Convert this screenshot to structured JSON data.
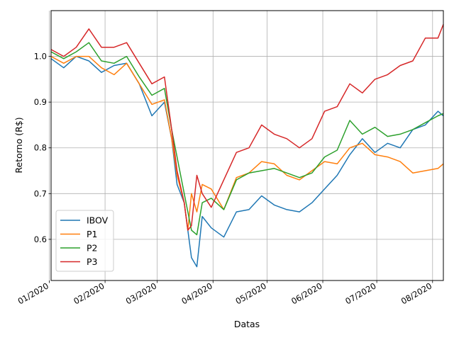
{
  "chart_data": {
    "type": "line",
    "title": "",
    "xlabel": "Datas",
    "ylabel": "Retorno (R$)",
    "x_ticks": [
      "01/2020",
      "02/2020",
      "03/2020",
      "04/2020",
      "05/2020",
      "06/2020",
      "07/2020",
      "08/2020"
    ],
    "x_range": [
      "2020-01-02",
      "2020-08-07"
    ],
    "ylim": [
      0.51,
      1.1
    ],
    "y_ticks": [
      0.6,
      0.7,
      0.8,
      0.9,
      1.0
    ],
    "grid": true,
    "legend_position": "lower-left",
    "x": [
      "2020-01-02",
      "2020-01-09",
      "2020-01-16",
      "2020-01-23",
      "2020-01-30",
      "2020-02-06",
      "2020-02-13",
      "2020-02-20",
      "2020-02-27",
      "2020-03-05",
      "2020-03-09",
      "2020-03-12",
      "2020-03-16",
      "2020-03-18",
      "2020-03-20",
      "2020-03-23",
      "2020-03-26",
      "2020-03-31",
      "2020-04-07",
      "2020-04-14",
      "2020-04-21",
      "2020-04-28",
      "2020-05-05",
      "2020-05-12",
      "2020-05-19",
      "2020-05-26",
      "2020-06-02",
      "2020-06-09",
      "2020-06-16",
      "2020-06-23",
      "2020-06-30",
      "2020-07-07",
      "2020-07-14",
      "2020-07-21",
      "2020-07-28",
      "2020-08-04",
      "2020-08-07"
    ],
    "series": [
      {
        "name": "IBOV",
        "color": "#1f77b4",
        "values": [
          0.995,
          0.975,
          1.0,
          0.99,
          0.965,
          0.98,
          0.985,
          0.94,
          0.87,
          0.9,
          0.82,
          0.72,
          0.68,
          0.62,
          0.56,
          0.54,
          0.65,
          0.625,
          0.605,
          0.66,
          0.665,
          0.695,
          0.675,
          0.665,
          0.66,
          0.68,
          0.71,
          0.74,
          0.785,
          0.82,
          0.79,
          0.81,
          0.8,
          0.84,
          0.85,
          0.88,
          0.87
        ]
      },
      {
        "name": "P1",
        "color": "#ff7f0e",
        "values": [
          1.0,
          0.985,
          1.0,
          1.0,
          0.975,
          0.96,
          0.985,
          0.94,
          0.895,
          0.905,
          0.82,
          0.74,
          0.68,
          0.62,
          0.7,
          0.66,
          0.72,
          0.71,
          0.665,
          0.735,
          0.745,
          0.77,
          0.765,
          0.74,
          0.73,
          0.75,
          0.77,
          0.765,
          0.8,
          0.81,
          0.785,
          0.78,
          0.77,
          0.745,
          0.75,
          0.755,
          0.765
        ]
      },
      {
        "name": "P2",
        "color": "#2ca02c",
        "values": [
          1.01,
          0.995,
          1.01,
          1.03,
          0.99,
          0.985,
          1.0,
          0.955,
          0.915,
          0.93,
          0.84,
          0.78,
          0.7,
          0.66,
          0.62,
          0.61,
          0.68,
          0.69,
          0.665,
          0.73,
          0.745,
          0.75,
          0.755,
          0.745,
          0.735,
          0.745,
          0.78,
          0.795,
          0.86,
          0.83,
          0.845,
          0.825,
          0.83,
          0.84,
          0.855,
          0.87,
          0.875
        ]
      },
      {
        "name": "P3",
        "color": "#d62728",
        "values": [
          1.015,
          1.0,
          1.02,
          1.06,
          1.02,
          1.02,
          1.03,
          0.985,
          0.94,
          0.955,
          0.84,
          0.75,
          0.68,
          0.62,
          0.63,
          0.74,
          0.7,
          0.67,
          0.73,
          0.79,
          0.8,
          0.85,
          0.83,
          0.82,
          0.8,
          0.82,
          0.88,
          0.89,
          0.94,
          0.92,
          0.95,
          0.96,
          0.98,
          0.99,
          1.04,
          1.04,
          1.07
        ]
      }
    ]
  }
}
